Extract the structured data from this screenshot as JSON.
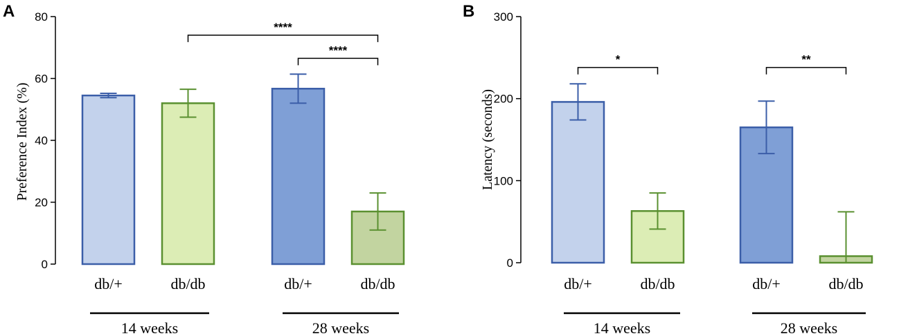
{
  "chart_data": [
    {
      "panel": "A",
      "type": "bar",
      "ylabel": "Preference Index (%)",
      "ylim": [
        0,
        80
      ],
      "yticks": [
        0,
        20,
        40,
        60,
        80
      ],
      "categories": [
        "db/+",
        "db/db",
        "db/+",
        "db/db"
      ],
      "groups": [
        {
          "label": "14 weeks",
          "bars": [
            0,
            1
          ]
        },
        {
          "label": "28 weeks",
          "bars": [
            2,
            3
          ]
        }
      ],
      "values": [
        54.5,
        52,
        56.7,
        17
      ],
      "errors": [
        0.7,
        4.5,
        4.7,
        6
      ],
      "colors": {
        "fill": [
          "#c3d2ec",
          "#dcedb5",
          "#7f9fd6",
          "#c2d4a0"
        ],
        "stroke": [
          "#3b5ea8",
          "#5a9030",
          "#3b5ea8",
          "#5a9030"
        ]
      },
      "significance": [
        {
          "from": 1,
          "to": 3,
          "label": "****",
          "y": 74
        },
        {
          "from": 2,
          "to": 3,
          "label": "****",
          "y": 66.5
        }
      ]
    },
    {
      "panel": "B",
      "type": "bar",
      "ylabel": "Latency (seconds)",
      "ylim": [
        0,
        300
      ],
      "yticks": [
        0,
        100,
        200,
        300
      ],
      "categories": [
        "db/+",
        "db/db",
        "db/+",
        "db/db"
      ],
      "groups": [
        {
          "label": "14 weeks",
          "bars": [
            0,
            1
          ]
        },
        {
          "label": "28 weeks",
          "bars": [
            2,
            3
          ]
        }
      ],
      "values": [
        196,
        63,
        165,
        8
      ],
      "errors": [
        22,
        22,
        32,
        54
      ],
      "colors": {
        "fill": [
          "#c3d2ec",
          "#dcedb5",
          "#7f9fd6",
          "#c2d4a0"
        ],
        "stroke": [
          "#3b5ea8",
          "#5a9030",
          "#3b5ea8",
          "#5a9030"
        ]
      },
      "significance": [
        {
          "from": 0,
          "to": 1,
          "label": "*",
          "y": 238
        },
        {
          "from": 2,
          "to": 3,
          "label": "**",
          "y": 238
        }
      ]
    }
  ]
}
